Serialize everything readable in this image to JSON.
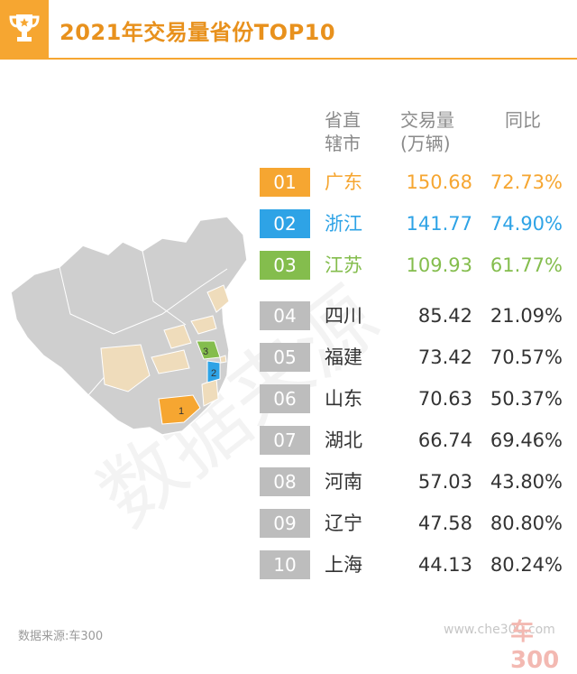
{
  "header": {
    "title": "2021年交易量省份TOP10",
    "icon": "trophy-icon",
    "accent": "#f6a631"
  },
  "columns": {
    "province": "省直辖市",
    "volume": "交易量(万辆)",
    "yoy": "同比"
  },
  "colors": {
    "rank1": "#f6a631",
    "rank2": "#2ea3e6",
    "rank3": "#84bd4d",
    "rank_other": "#bdbdbd",
    "text_other": "#333333",
    "map_base": "#cfcfcf",
    "map_highlight": "#efdcbb"
  },
  "chart_data": {
    "type": "table",
    "title": "2021年交易量省份TOP10",
    "columns": [
      "省直辖市",
      "交易量(万辆)",
      "同比"
    ],
    "rows": [
      {
        "rank": "01",
        "province": "广东",
        "volume": "150.68",
        "yoy": "72.73%"
      },
      {
        "rank": "02",
        "province": "浙江",
        "volume": "141.77",
        "yoy": "74.90%"
      },
      {
        "rank": "03",
        "province": "江苏",
        "volume": "109.93",
        "yoy": "61.77%"
      },
      {
        "rank": "04",
        "province": "四川",
        "volume": "85.42",
        "yoy": "21.09%"
      },
      {
        "rank": "05",
        "province": "福建",
        "volume": "73.42",
        "yoy": "70.57%"
      },
      {
        "rank": "06",
        "province": "山东",
        "volume": "70.63",
        "yoy": "50.37%"
      },
      {
        "rank": "07",
        "province": "湖北",
        "volume": "66.74",
        "yoy": "69.46%"
      },
      {
        "rank": "08",
        "province": "河南",
        "volume": "57.03",
        "yoy": "43.80%"
      },
      {
        "rank": "09",
        "province": "辽宁",
        "volume": "47.58",
        "yoy": "80.80%"
      },
      {
        "rank": "10",
        "province": "上海",
        "volume": "44.13",
        "yoy": "80.24%"
      }
    ]
  },
  "map": {
    "markers": [
      "1",
      "2",
      "3"
    ]
  },
  "footer": {
    "source": "数据来源:车300",
    "site": "www.che300.com",
    "logo": "车300"
  },
  "watermark": "数据来源"
}
